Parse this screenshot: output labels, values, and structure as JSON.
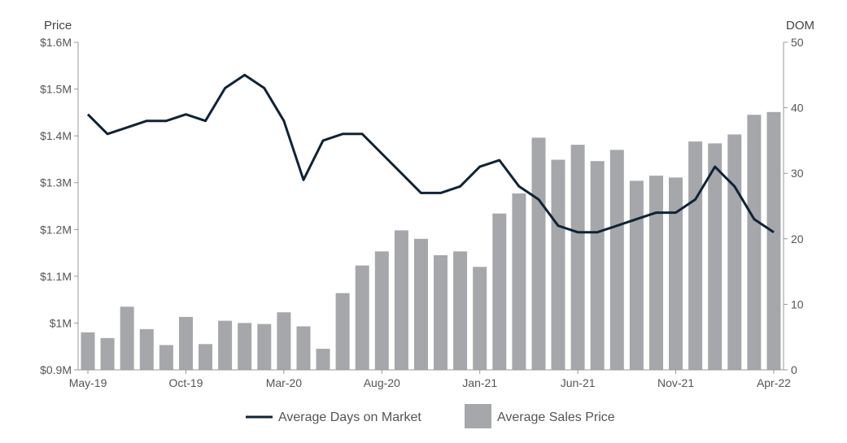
{
  "chart_data": {
    "type": "bar",
    "title": "",
    "left_axis": {
      "label": "Price",
      "ticks": [
        "$0.9M",
        "$1M",
        "$1.1M",
        "$1.2M",
        "$1.3M",
        "$1.4M",
        "$1.5M",
        "$1.6M"
      ],
      "range": [
        0.9,
        1.6
      ],
      "unit": "$M"
    },
    "right_axis": {
      "label": "DOM",
      "ticks": [
        "0",
        "10",
        "20",
        "30",
        "40",
        "50"
      ],
      "range": [
        0,
        50
      ]
    },
    "x_tick_labels": [
      "May-19",
      "Oct-19",
      "Mar-20",
      "Aug-20",
      "Jan-21",
      "Jun-21",
      "Nov-21",
      "Apr-22"
    ],
    "categories": [
      "May-19",
      "Jun-19",
      "Jul-19",
      "Aug-19",
      "Sep-19",
      "Oct-19",
      "Nov-19",
      "Dec-19",
      "Jan-20",
      "Feb-20",
      "Mar-20",
      "Apr-20",
      "May-20",
      "Jun-20",
      "Jul-20",
      "Aug-20",
      "Sep-20",
      "Oct-20",
      "Nov-20",
      "Dec-20",
      "Jan-21",
      "Feb-21",
      "Mar-21",
      "Apr-21",
      "May-21",
      "Jun-21",
      "Jul-21",
      "Aug-21",
      "Sep-21",
      "Oct-21",
      "Nov-21",
      "Dec-21",
      "Jan-22",
      "Feb-22",
      "Mar-22",
      "Apr-22"
    ],
    "series": [
      {
        "name": "Average Sales Price",
        "type": "bar",
        "axis": "left",
        "color": "#a6a7aa",
        "values": [
          0.98,
          0.968,
          1.035,
          0.987,
          0.953,
          1.013,
          0.955,
          1.005,
          1.0,
          0.998,
          1.023,
          0.993,
          0.945,
          1.064,
          1.123,
          1.153,
          1.198,
          1.18,
          1.145,
          1.153,
          1.12,
          1.234,
          1.277,
          1.396,
          1.349,
          1.381,
          1.346,
          1.37,
          1.304,
          1.315,
          1.311,
          1.388,
          1.384,
          1.403,
          1.445,
          1.451
        ]
      },
      {
        "name": "Average Days on Market",
        "type": "line",
        "axis": "right",
        "color": "#0f2336",
        "values": [
          39,
          36,
          37,
          38,
          38,
          39,
          38,
          43,
          45,
          43,
          38,
          29,
          35,
          36,
          36,
          33,
          30,
          27,
          27,
          28,
          31,
          32,
          28,
          26,
          22,
          21,
          21,
          22,
          23,
          24,
          24,
          26,
          31,
          28,
          23,
          21
        ]
      }
    ],
    "legend": {
      "placement": "bottom",
      "items": [
        "Average Days on Market",
        "Average Sales Price"
      ]
    }
  }
}
